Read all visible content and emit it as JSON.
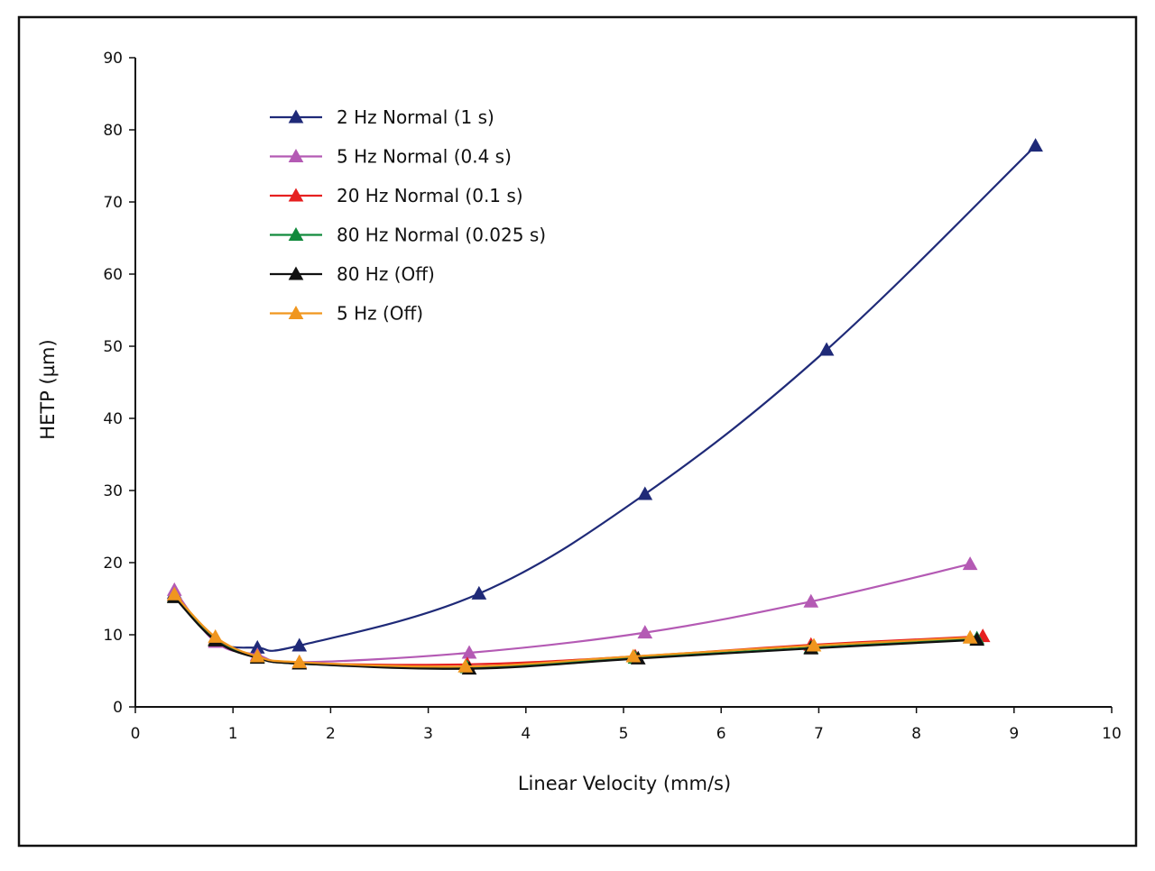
{
  "chart_data": {
    "type": "line",
    "title": "",
    "xlabel": "Linear Velocity (mm/s)",
    "ylabel": "HETP (µm)",
    "xlim": [
      0,
      10
    ],
    "ylim": [
      0,
      90
    ],
    "xticks": [
      0,
      1,
      2,
      3,
      4,
      5,
      6,
      7,
      8,
      9,
      10
    ],
    "yticks": [
      0,
      10,
      20,
      30,
      40,
      50,
      60,
      70,
      80,
      90
    ],
    "legend_position": "top-left",
    "grid": false,
    "marker": "triangle",
    "series": [
      {
        "name": "2 Hz Normal (1 s)",
        "color": "#1f2a78",
        "x": [
          0.4,
          0.82,
          1.25,
          1.68,
          3.52,
          5.22,
          7.08,
          9.22
        ],
        "y": [
          15.8,
          9.2,
          8.2,
          8.5,
          15.7,
          29.5,
          49.5,
          77.8
        ]
      },
      {
        "name": "5 Hz Normal (0.4 s)",
        "color": "#b45ab4",
        "x": [
          0.4,
          0.82,
          1.25,
          1.68,
          3.42,
          5.22,
          6.92,
          8.55
        ],
        "y": [
          16.2,
          9.0,
          7.2,
          6.2,
          7.5,
          10.3,
          14.6,
          19.8
        ]
      },
      {
        "name": "20 Hz Normal (0.1 s)",
        "color": "#e62020",
        "x": [
          0.4,
          0.82,
          1.25,
          1.68,
          3.4,
          5.12,
          6.92,
          8.68
        ],
        "y": [
          15.5,
          9.4,
          7.0,
          6.1,
          5.9,
          7.0,
          8.6,
          9.8
        ]
      },
      {
        "name": "80 Hz Normal (0.025 s)",
        "color": "#118a3c",
        "x": [
          0.4,
          0.82,
          1.25,
          1.68,
          3.4,
          5.12,
          6.92,
          8.62
        ],
        "y": [
          15.3,
          9.3,
          6.9,
          6.0,
          5.5,
          6.8,
          8.2,
          9.5
        ]
      },
      {
        "name": "80 Hz (Off)",
        "color": "#111111",
        "x": [
          0.4,
          0.82,
          1.25,
          1.68,
          3.42,
          5.15,
          6.92,
          8.62
        ],
        "y": [
          15.2,
          9.2,
          6.8,
          6.0,
          5.3,
          6.7,
          8.1,
          9.3
        ]
      },
      {
        "name": "5 Hz (Off)",
        "color": "#f0961e",
        "x": [
          0.4,
          0.82,
          1.25,
          1.68,
          3.38,
          5.1,
          6.95,
          8.55
        ],
        "y": [
          15.6,
          9.7,
          7.0,
          6.2,
          5.6,
          7.0,
          8.5,
          9.6
        ]
      }
    ]
  }
}
